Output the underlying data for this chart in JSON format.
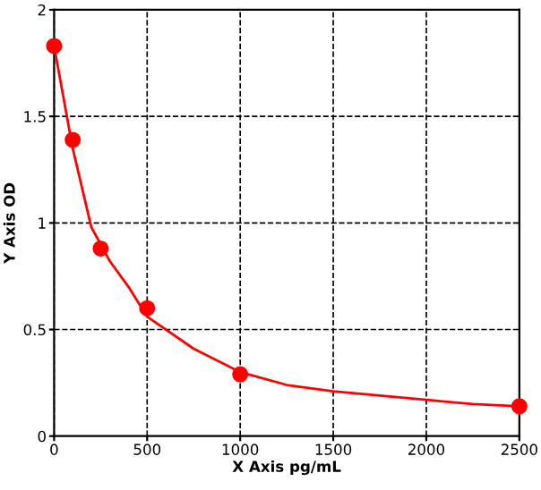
{
  "chart_data": {
    "type": "scatter",
    "xlabel": "X Axis pg/mL",
    "ylabel": "Y Axis OD",
    "xlim": [
      0,
      2500
    ],
    "ylim": [
      0,
      2
    ],
    "xticks": [
      0,
      500,
      1000,
      1500,
      2000,
      2500
    ],
    "yticks": [
      0,
      0.5,
      1,
      1.5,
      2
    ],
    "grid": true,
    "series": [
      {
        "color": "#ff0000",
        "marker": "circle",
        "x": [
          0,
          100,
          250,
          500,
          1000,
          2500
        ],
        "values": [
          1.83,
          1.39,
          0.88,
          0.6,
          0.29,
          0.14
        ]
      },
      {
        "type": "line",
        "marker": "none",
        "color": "#ff0000",
        "x": [
          0,
          50,
          100,
          200,
          300,
          400,
          500,
          750,
          1000,
          1250,
          1500,
          1750,
          2000,
          2250,
          2500
        ],
        "values": [
          1.83,
          1.59,
          1.35,
          0.98,
          0.82,
          0.7,
          0.56,
          0.41,
          0.3,
          0.24,
          0.21,
          0.19,
          0.17,
          0.15,
          0.14
        ]
      }
    ]
  }
}
